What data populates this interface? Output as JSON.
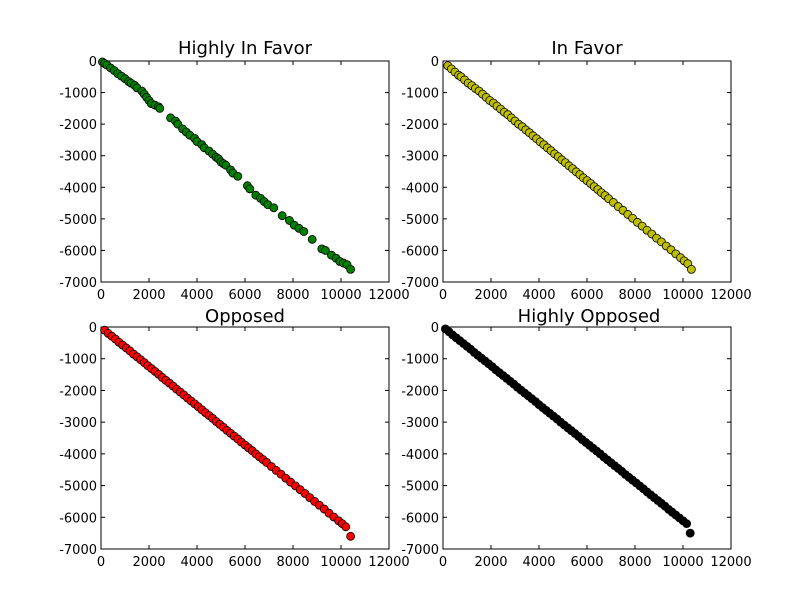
{
  "chart_data": [
    {
      "type": "scatter",
      "title": "Highly In Favor",
      "color": "#008000",
      "xlim": [
        0,
        12000
      ],
      "ylim": [
        -7000,
        0
      ],
      "xticks": [
        0,
        2000,
        4000,
        6000,
        8000,
        10000,
        12000
      ],
      "yticks": [
        0,
        -1000,
        -2000,
        -3000,
        -4000,
        -5000,
        -6000,
        -7000
      ],
      "x": [
        60,
        150,
        250,
        400,
        550,
        700,
        850,
        1000,
        1150,
        1250,
        1400,
        1500,
        1700,
        1800,
        1900,
        2000,
        2100,
        2250,
        2400,
        2450,
        2900,
        3100,
        3200,
        3400,
        3550,
        3700,
        3900,
        4000,
        4200,
        4300,
        4500,
        4650,
        4800,
        4900,
        5000,
        5100,
        5200,
        5400,
        5500,
        5700,
        6100,
        6200,
        6450,
        6650,
        6800,
        6950,
        7200,
        7550,
        7850,
        8050,
        8250,
        8450,
        8800,
        9200,
        9350,
        9600,
        9800,
        9950,
        10100,
        10250,
        10400
      ],
      "y": [
        -30,
        -80,
        -130,
        -220,
        -300,
        -400,
        -480,
        -560,
        -650,
        -700,
        -770,
        -850,
        -950,
        -1050,
        -1150,
        -1250,
        -1350,
        -1400,
        -1450,
        -1500,
        -1800,
        -1900,
        -2000,
        -2150,
        -2250,
        -2350,
        -2450,
        -2550,
        -2650,
        -2750,
        -2850,
        -2950,
        -3050,
        -3100,
        -3200,
        -3250,
        -3300,
        -3450,
        -3550,
        -3650,
        -3950,
        -4050,
        -4250,
        -4350,
        -4450,
        -4550,
        -4650,
        -4900,
        -5050,
        -5200,
        -5300,
        -5400,
        -5650,
        -5950,
        -6000,
        -6150,
        -6250,
        -6350,
        -6400,
        -6450,
        -6600
      ]
    },
    {
      "type": "scatter",
      "title": "In Favor",
      "color": "#bfbf00",
      "xlim": [
        0,
        12000
      ],
      "ylim": [
        -7000,
        0
      ],
      "xticks": [
        0,
        2000,
        4000,
        6000,
        8000,
        10000,
        12000
      ],
      "yticks": [
        0,
        -1000,
        -2000,
        -3000,
        -4000,
        -5000,
        -6000,
        -7000
      ],
      "x": [
        200,
        350,
        500,
        650,
        750,
        900,
        1050,
        1200,
        1350,
        1500,
        1650,
        1800,
        1950,
        2100,
        2250,
        2400,
        2550,
        2700,
        2850,
        3000,
        3150,
        3300,
        3450,
        3600,
        3750,
        3900,
        4050,
        4200,
        4350,
        4500,
        4650,
        4800,
        4950,
        5100,
        5250,
        5400,
        5550,
        5700,
        5850,
        6000,
        6150,
        6300,
        6450,
        6600,
        6750,
        6900,
        7100,
        7300,
        7500,
        7700,
        7900,
        8100,
        8300,
        8500,
        8700,
        8900,
        9100,
        9300,
        9500,
        9700,
        9900,
        10050,
        10200,
        10350
      ],
      "y": [
        -150,
        -250,
        -350,
        -450,
        -500,
        -600,
        -700,
        -780,
        -870,
        -950,
        -1050,
        -1150,
        -1250,
        -1330,
        -1430,
        -1520,
        -1620,
        -1700,
        -1800,
        -1900,
        -2000,
        -2080,
        -2180,
        -2270,
        -2370,
        -2460,
        -2560,
        -2650,
        -2750,
        -2840,
        -2940,
        -3030,
        -3130,
        -3220,
        -3320,
        -3410,
        -3510,
        -3600,
        -3700,
        -3790,
        -3880,
        -3980,
        -4070,
        -4170,
        -4260,
        -4360,
        -4480,
        -4610,
        -4730,
        -4860,
        -4980,
        -5110,
        -5230,
        -5360,
        -5480,
        -5610,
        -5730,
        -5860,
        -5980,
        -6110,
        -6230,
        -6330,
        -6420,
        -6600
      ]
    },
    {
      "type": "scatter",
      "title": "Opposed",
      "color": "#ff0000",
      "xlim": [
        0,
        12000
      ],
      "ylim": [
        -7000,
        0
      ],
      "xticks": [
        0,
        2000,
        4000,
        6000,
        8000,
        10000,
        12000
      ],
      "yticks": [
        0,
        -1000,
        -2000,
        -3000,
        -4000,
        -5000,
        -6000,
        -7000
      ],
      "x": [
        150,
        300,
        450,
        600,
        750,
        900,
        1050,
        1200,
        1350,
        1500,
        1650,
        1800,
        1950,
        2100,
        2250,
        2400,
        2550,
        2700,
        2850,
        3000,
        3150,
        3300,
        3450,
        3600,
        3750,
        3900,
        4050,
        4200,
        4350,
        4500,
        4650,
        4800,
        4950,
        5100,
        5250,
        5400,
        5550,
        5700,
        5850,
        6000,
        6150,
        6300,
        6450,
        6600,
        6750,
        6900,
        7100,
        7300,
        7500,
        7700,
        7900,
        8100,
        8300,
        8500,
        8700,
        8900,
        9100,
        9300,
        9500,
        9700,
        9900,
        10050,
        10200,
        10400
      ],
      "y": [
        -100,
        -200,
        -290,
        -380,
        -480,
        -570,
        -660,
        -750,
        -850,
        -940,
        -1030,
        -1120,
        -1220,
        -1310,
        -1400,
        -1490,
        -1590,
        -1680,
        -1770,
        -1860,
        -1960,
        -2050,
        -2140,
        -2240,
        -2330,
        -2420,
        -2510,
        -2610,
        -2700,
        -2790,
        -2880,
        -2980,
        -3070,
        -3160,
        -3260,
        -3350,
        -3440,
        -3530,
        -3630,
        -3720,
        -3810,
        -3900,
        -4000,
        -4090,
        -4180,
        -4270,
        -4400,
        -4520,
        -4640,
        -4770,
        -4890,
        -5010,
        -5130,
        -5250,
        -5380,
        -5500,
        -5620,
        -5740,
        -5870,
        -5990,
        -6110,
        -6200,
        -6300,
        -6600
      ]
    },
    {
      "type": "scatter",
      "title": "Highly Opposed",
      "color": "#000000",
      "xlim": [
        0,
        12000
      ],
      "ylim": [
        -7000,
        0
      ],
      "xticks": [
        0,
        2000,
        4000,
        6000,
        8000,
        10000,
        12000
      ],
      "yticks": [
        0,
        -1000,
        -2000,
        -3000,
        -4000,
        -5000,
        -6000,
        -7000
      ],
      "x": [
        100,
        250,
        400,
        550,
        700,
        850,
        1000,
        1150,
        1300,
        1450,
        1600,
        1750,
        1900,
        2050,
        2200,
        2350,
        2500,
        2650,
        2800,
        2950,
        3100,
        3250,
        3400,
        3550,
        3700,
        3850,
        4000,
        4150,
        4300,
        4450,
        4600,
        4750,
        4900,
        5050,
        5200,
        5350,
        5500,
        5650,
        5800,
        5950,
        6100,
        6250,
        6400,
        6550,
        6700,
        6850,
        7000,
        7150,
        7300,
        7450,
        7600,
        7750,
        7900,
        8050,
        8200,
        8350,
        8500,
        8650,
        8800,
        8950,
        9100,
        9250,
        9400,
        9550,
        9700,
        9850,
        10000,
        10150,
        10300
      ],
      "y": [
        -60,
        -150,
        -250,
        -340,
        -430,
        -520,
        -610,
        -700,
        -800,
        -890,
        -980,
        -1070,
        -1160,
        -1250,
        -1350,
        -1440,
        -1530,
        -1620,
        -1710,
        -1800,
        -1900,
        -1990,
        -2080,
        -2170,
        -2260,
        -2350,
        -2450,
        -2540,
        -2630,
        -2720,
        -2810,
        -2900,
        -3000,
        -3090,
        -3180,
        -3270,
        -3360,
        -3450,
        -3550,
        -3640,
        -3730,
        -3820,
        -3910,
        -4000,
        -4100,
        -4190,
        -4280,
        -4370,
        -4460,
        -4550,
        -4650,
        -4740,
        -4830,
        -4920,
        -5010,
        -5100,
        -5200,
        -5290,
        -5380,
        -5470,
        -5560,
        -5650,
        -5750,
        -5840,
        -5930,
        -6020,
        -6110,
        -6200,
        -6500
      ]
    }
  ]
}
